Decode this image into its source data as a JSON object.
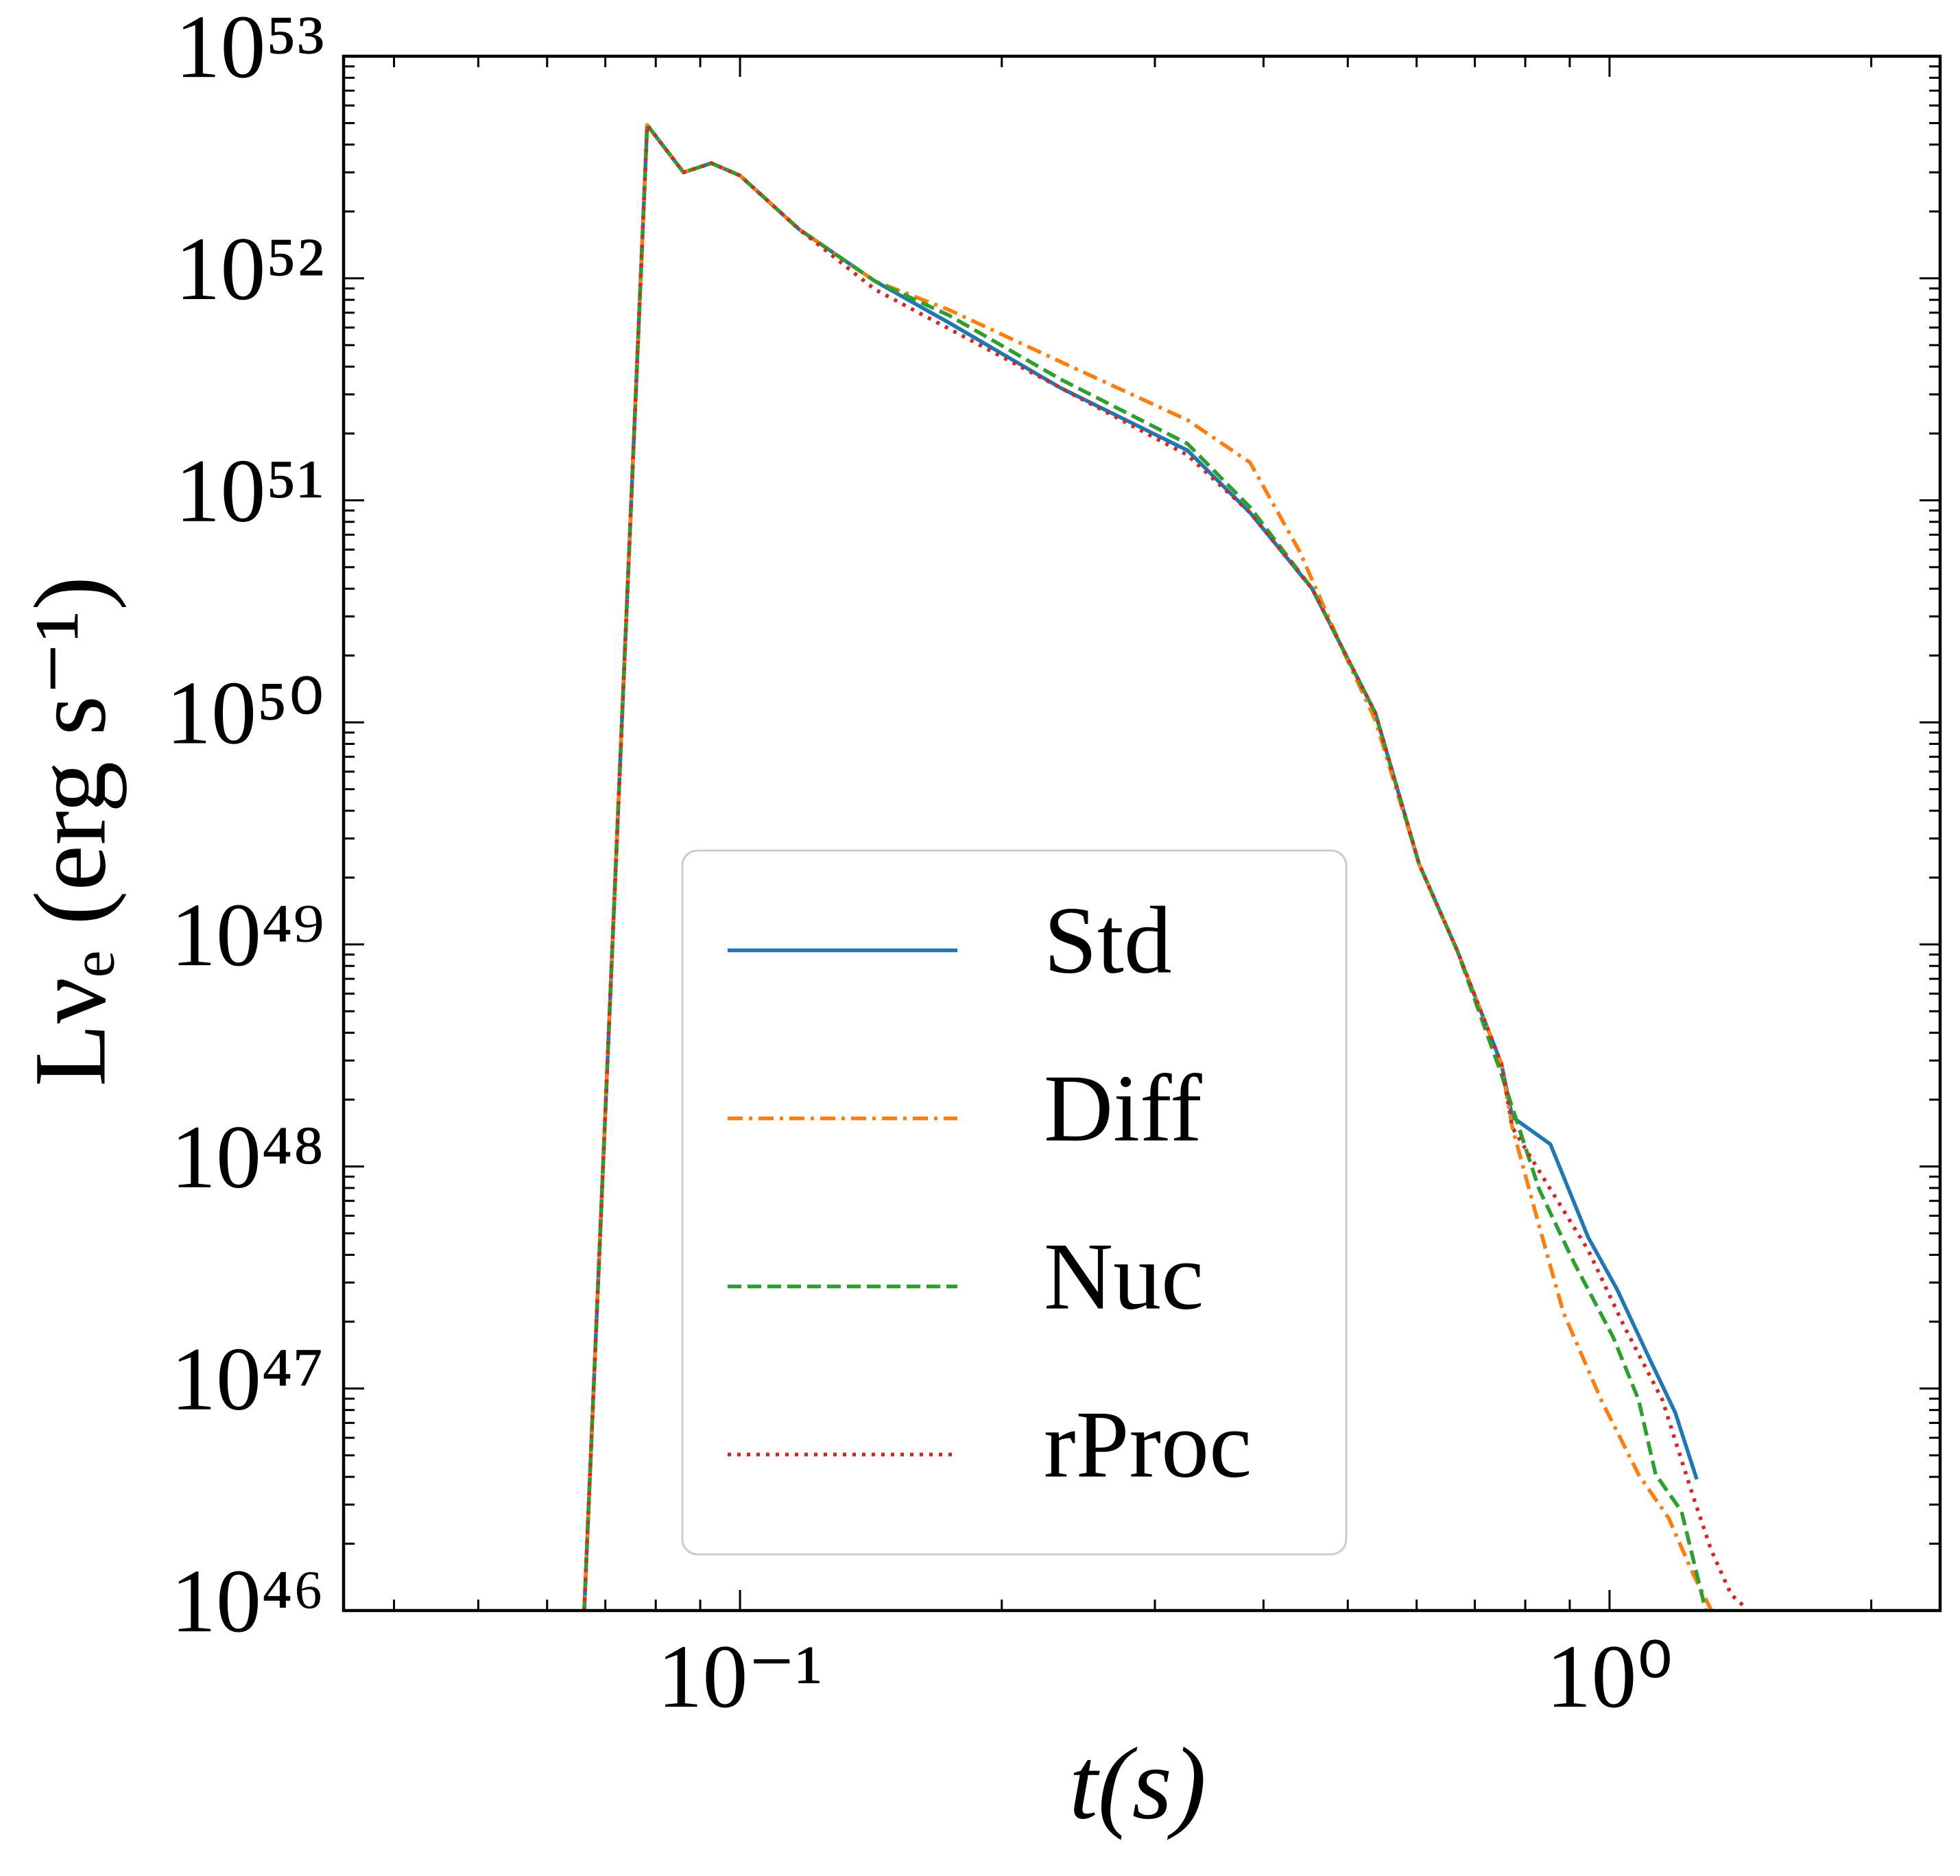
{
  "chart_data": {
    "type": "line",
    "xlabel": "t(s)",
    "ylabel": "Lνₑ (erg s⁻¹)",
    "xscale": "log",
    "yscale": "log",
    "xlim": [
      0.035,
      2.4
    ],
    "ylim": [
      1e+46,
      1e+53
    ],
    "xticks": [
      {
        "value": 0.1,
        "label": "10⁻¹"
      },
      {
        "value": 1,
        "label": "10⁰"
      }
    ],
    "yticks": [
      {
        "value": 1e+46,
        "label": "10⁴⁶"
      },
      {
        "value": 1e+47,
        "label": "10⁴⁷"
      },
      {
        "value": 1e+48,
        "label": "10⁴⁸"
      },
      {
        "value": 1e+49,
        "label": "10⁴⁹"
      },
      {
        "value": 1e+50,
        "label": "10⁵⁰"
      },
      {
        "value": 1e+51,
        "label": "10⁵¹"
      },
      {
        "value": 1e+52,
        "label": "10⁵²"
      },
      {
        "value": 1e+53,
        "label": "10⁵³"
      }
    ],
    "legend_loc": "lower center",
    "series": [
      {
        "name": "Std",
        "color": "#1f77b4",
        "linestyle": "solid",
        "x": [
          0.0662,
          0.0782,
          0.0861,
          0.0927,
          0.1,
          0.117,
          0.143,
          0.174,
          0.234,
          0.327,
          0.386,
          0.455,
          0.538,
          0.604,
          0.668,
          0.751,
          0.773,
          0.855,
          0.945,
          1.02,
          1.11,
          1.19,
          1.26
        ],
        "values": [
          1e+46,
          4.9e+52,
          3e+52,
          3.3e+52,
          2.9e+52,
          1.66e+52,
          9.7e+51,
          6.3e+51,
          3.2e+51,
          1.68e+51,
          8.8e+50,
          4e+50,
          1.1e+50,
          2.3e+49,
          9.4e+48,
          2.9e+48,
          1.67e+48,
          1.26e+48,
          4.8e+47,
          2.8e+47,
          1.38e+47,
          7.8e+46,
          3.9e+46
        ]
      },
      {
        "name": "Diff",
        "color": "#ff7f0e",
        "linestyle": "dashdot",
        "x": [
          0.0662,
          0.0782,
          0.0861,
          0.0927,
          0.1,
          0.117,
          0.143,
          0.174,
          0.234,
          0.327,
          0.386,
          0.44,
          0.494,
          0.538,
          0.604,
          0.668,
          0.751,
          0.773,
          0.83,
          0.885,
          0.978,
          1.08,
          1.17,
          1.25,
          1.31
        ],
        "values": [
          1e+46,
          4.9e+52,
          3e+52,
          3.3e+52,
          2.9e+52,
          1.66e+52,
          9.7e+51,
          7.2e+51,
          4.2e+51,
          2.3e+51,
          1.48e+51,
          5.9e+50,
          2.1e+50,
          1.02e+50,
          2.3e+49,
          9.4e+48,
          2.9e+48,
          1.5e+48,
          5.4e+47,
          2.2e+47,
          8.9e+46,
          4.1e+46,
          2.6e+46,
          1.44e+46,
          1e+46
        ]
      },
      {
        "name": "Nuc",
        "color": "#2ca02c",
        "linestyle": "dashed",
        "x": [
          0.0662,
          0.0782,
          0.0861,
          0.0927,
          0.1,
          0.117,
          0.143,
          0.174,
          0.234,
          0.327,
          0.386,
          0.455,
          0.538,
          0.604,
          0.668,
          0.751,
          0.83,
          0.91,
          1.01,
          1.08,
          1.13,
          1.21,
          1.29
        ],
        "values": [
          1e+46,
          4.9e+52,
          3e+52,
          3.3e+52,
          2.9e+52,
          1.66e+52,
          9.7e+51,
          6.8e+51,
          3.5e+51,
          1.8e+51,
          9.3e+50,
          4e+50,
          1.1e+50,
          2.3e+49,
          9.4e+48,
          2.6e+48,
          7.9e+47,
          3.7e+47,
          1.7e+47,
          8.9e+46,
          4.1e+46,
          2.8e+46,
          1e+46
        ]
      },
      {
        "name": "rProc",
        "color": "#d62728",
        "linestyle": "dotted",
        "x": [
          0.0662,
          0.0782,
          0.0861,
          0.0927,
          0.1,
          0.117,
          0.143,
          0.234,
          0.327,
          0.386,
          0.455,
          0.538,
          0.604,
          0.668,
          0.751,
          0.773,
          0.855,
          0.945,
          1.04,
          1.15,
          1.25,
          1.31,
          1.38,
          1.43
        ],
        "values": [
          1e+46,
          4.9e+52,
          3e+52,
          3.3e+52,
          2.9e+52,
          1.66e+52,
          8.9e+51,
          3.2e+51,
          1.6e+51,
          8.8e+50,
          4e+50,
          1.1e+50,
          2.3e+49,
          9.4e+48,
          2.9e+48,
          1.5e+48,
          7.9e+47,
          4.2e+47,
          1.9e+47,
          8.9e+46,
          3.2e+46,
          1.86e+46,
          1.18e+46,
          1.04e+46
        ]
      }
    ]
  }
}
